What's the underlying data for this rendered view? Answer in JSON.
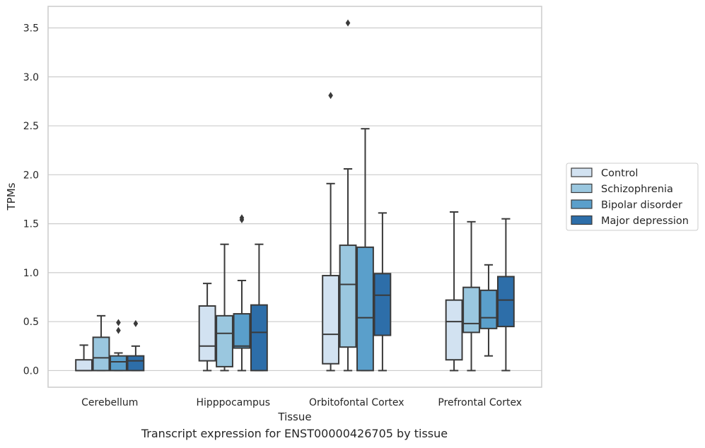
{
  "caption": "Transcript expression for ENST00000426705 by tissue",
  "chart_data": {
    "type": "boxplot",
    "xlabel": "Tissue",
    "ylabel": "TPMs",
    "ylim": [
      -0.17,
      3.72
    ],
    "yticks": [
      0.0,
      0.5,
      1.0,
      1.5,
      2.0,
      2.5,
      3.0,
      3.5
    ],
    "ytick_labels": [
      "0.0",
      "0.5",
      "1.0",
      "1.5",
      "2.0",
      "2.5",
      "3.0",
      "3.5"
    ],
    "grid": "horizontal",
    "legend_placement": "center-right outside",
    "categories": [
      "Cerebellum",
      "Hipppocampus",
      "Orbitofontal Cortex",
      "Prefrontal Cortex"
    ],
    "series": [
      {
        "name": "Control",
        "color": "#d2e2f1",
        "boxes": [
          {
            "whislo": 0.0,
            "q1": 0.0,
            "med": 0.0,
            "q3": 0.11,
            "whishi": 0.26,
            "fliers": []
          },
          {
            "whislo": 0.0,
            "q1": 0.1,
            "med": 0.25,
            "q3": 0.66,
            "whishi": 0.89,
            "fliers": []
          },
          {
            "whislo": 0.0,
            "q1": 0.07,
            "med": 0.37,
            "q3": 0.97,
            "whishi": 1.91,
            "fliers": [
              2.81
            ]
          },
          {
            "whislo": 0.0,
            "q1": 0.11,
            "med": 0.5,
            "q3": 0.72,
            "whishi": 1.62,
            "fliers": []
          }
        ]
      },
      {
        "name": "Schizophrenia",
        "color": "#9ac7df",
        "boxes": [
          {
            "whislo": 0.0,
            "q1": 0.0,
            "med": 0.13,
            "q3": 0.34,
            "whishi": 0.56,
            "fliers": []
          },
          {
            "whislo": 0.0,
            "q1": 0.04,
            "med": 0.38,
            "q3": 0.56,
            "whishi": 1.29,
            "fliers": []
          },
          {
            "whislo": 0.0,
            "q1": 0.24,
            "med": 0.88,
            "q3": 1.28,
            "whishi": 2.06,
            "fliers": [
              3.55
            ]
          },
          {
            "whislo": 0.0,
            "q1": 0.39,
            "med": 0.48,
            "q3": 0.85,
            "whishi": 1.52,
            "fliers": []
          }
        ]
      },
      {
        "name": "Bipolar disorder",
        "color": "#5a9fcb",
        "boxes": [
          {
            "whislo": 0.0,
            "q1": 0.0,
            "med": 0.09,
            "q3": 0.15,
            "whishi": 0.18,
            "fliers": [
              0.41,
              0.49
            ]
          },
          {
            "whislo": 0.0,
            "q1": 0.23,
            "med": 0.25,
            "q3": 0.58,
            "whishi": 0.92,
            "fliers": [
              1.54,
              1.56
            ]
          },
          {
            "whislo": 0.0,
            "q1": 0.0,
            "med": 0.54,
            "q3": 1.26,
            "whishi": 2.47,
            "fliers": []
          },
          {
            "whislo": 0.15,
            "q1": 0.43,
            "med": 0.54,
            "q3": 0.82,
            "whishi": 1.08,
            "fliers": []
          }
        ]
      },
      {
        "name": "Major depression",
        "color": "#2d6ea9",
        "boxes": [
          {
            "whislo": 0.0,
            "q1": 0.0,
            "med": 0.1,
            "q3": 0.15,
            "whishi": 0.25,
            "fliers": [
              0.48
            ]
          },
          {
            "whislo": 0.0,
            "q1": 0.0,
            "med": 0.39,
            "q3": 0.67,
            "whishi": 1.29,
            "fliers": []
          },
          {
            "whislo": 0.0,
            "q1": 0.36,
            "med": 0.77,
            "q3": 0.99,
            "whishi": 1.61,
            "fliers": []
          },
          {
            "whislo": 0.0,
            "q1": 0.45,
            "med": 0.72,
            "q3": 0.96,
            "whishi": 1.55,
            "fliers": []
          }
        ]
      }
    ]
  }
}
